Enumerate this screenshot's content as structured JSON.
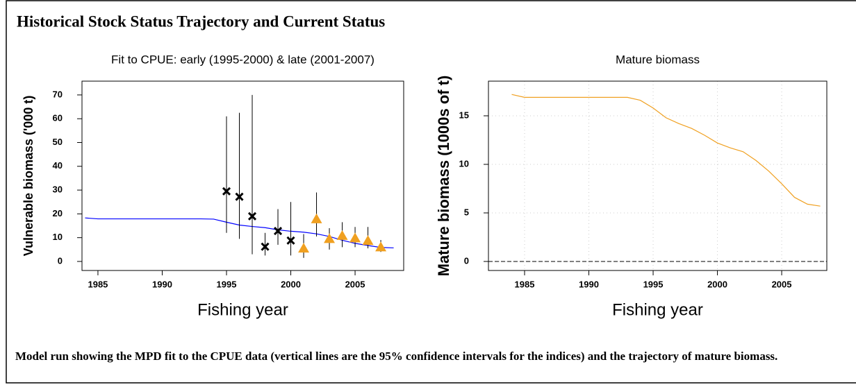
{
  "heading": "Historical Stock Status Trajectory and Current Status",
  "caption": "Model run showing the MPD fit to the CPUE data (vertical lines are the 95% confidence intervals for the indices) and the trajectory of mature biomass.",
  "chart_data": [
    {
      "type": "line",
      "title": "Fit to CPUE: early (1995-2000) & late (2001-2007)",
      "x_label": "Fishing year",
      "y_label": "Vulnerable biomass ('000 t)",
      "xlim": [
        1983.76,
        2008.78
      ],
      "ylim": [
        -3.8,
        75.8
      ],
      "xticks": [
        1985,
        1990,
        1995,
        2000,
        2005
      ],
      "yticks": [
        0,
        10,
        20,
        30,
        40,
        50,
        60,
        70
      ],
      "grid": false,
      "zero_line": false,
      "series": [
        {
          "color": "#0000ff",
          "marker": "none",
          "x": [
            1984,
            1985,
            1986,
            1987,
            1988,
            1989,
            1990,
            1991,
            1992,
            1993,
            1994,
            1995,
            1996,
            1997,
            1998,
            1999,
            2000,
            2001,
            2002,
            2003,
            2004,
            2005,
            2006,
            2007,
            2008
          ],
          "values": [
            18.3,
            17.9,
            17.9,
            17.9,
            17.9,
            17.9,
            17.9,
            17.9,
            17.9,
            17.9,
            17.8,
            16.5,
            15.3,
            14.7,
            14.2,
            13.3,
            12.7,
            12.3,
            11.6,
            10.5,
            8.9,
            7.6,
            6.7,
            5.9,
            5.7
          ]
        },
        {
          "color": "#000000",
          "marker": "x",
          "x": [
            1995,
            1996,
            1997,
            1998,
            1999,
            2000
          ],
          "values": [
            29.5,
            27.2,
            19,
            6.2,
            12.8,
            8.8
          ],
          "lower": [
            12,
            9.5,
            3,
            2.5,
            7,
            2.5
          ],
          "upper": [
            61,
            62.5,
            70,
            12,
            22,
            25
          ]
        },
        {
          "color": "#f0a020",
          "marker": "triangle",
          "x": [
            2001,
            2002,
            2003,
            2004,
            2005,
            2006,
            2007
          ],
          "values": [
            5.5,
            17.8,
            9.5,
            10.8,
            9.8,
            8.7,
            6
          ],
          "lower": [
            1.5,
            10.5,
            5,
            6,
            6,
            5.5,
            4
          ],
          "upper": [
            11.5,
            29,
            14,
            16.5,
            14.5,
            14.5,
            9
          ]
        }
      ]
    },
    {
      "type": "line",
      "title": "Mature biomass",
      "x_label": "Fishing year",
      "y_label": "Mature biomass (1000s of t)",
      "xlim": [
        1982.19,
        2008.51
      ],
      "ylim": [
        -0.93,
        18.57
      ],
      "xticks": [
        1985,
        1990,
        1995,
        2000,
        2005
      ],
      "yticks": [
        0,
        5,
        10,
        15
      ],
      "grid": true,
      "zero_line": true,
      "series": [
        {
          "color": "#f0a020",
          "marker": "none",
          "x": [
            1984,
            1985,
            1986,
            1987,
            1988,
            1989,
            1990,
            1991,
            1992,
            1993,
            1994,
            1995,
            1996,
            1997,
            1998,
            1999,
            2000,
            2001,
            2002,
            2003,
            2004,
            2005,
            2006,
            2007,
            2008
          ],
          "values": [
            17.2,
            16.9,
            16.9,
            16.9,
            16.9,
            16.9,
            16.9,
            16.9,
            16.9,
            16.9,
            16.6,
            15.8,
            14.8,
            14.2,
            13.7,
            13.0,
            12.2,
            11.7,
            11.3,
            10.4,
            9.3,
            8.0,
            6.6,
            5.9,
            5.7
          ]
        }
      ]
    }
  ]
}
